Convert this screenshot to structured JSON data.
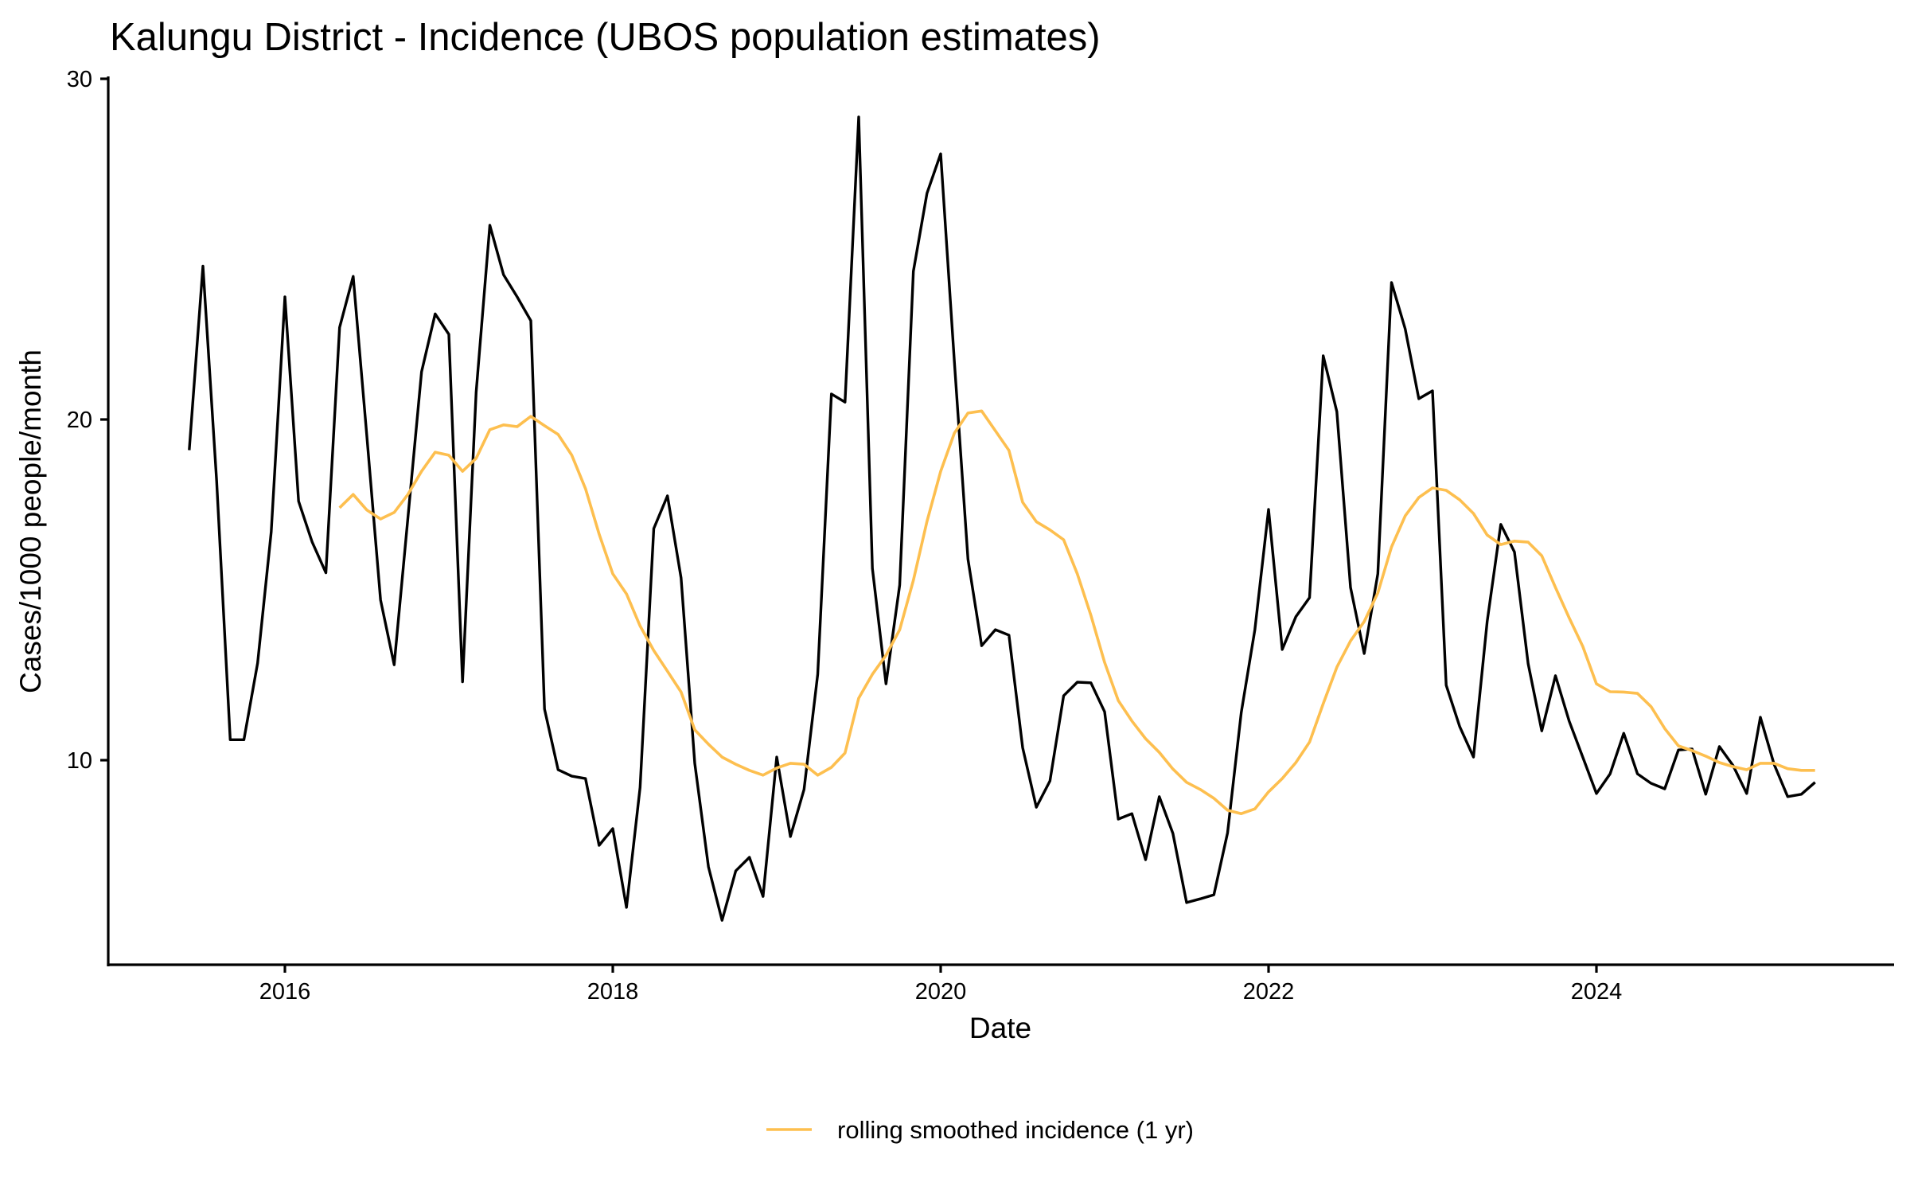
{
  "chart_data": {
    "type": "line",
    "title": "Kalungu District - Incidence (UBOS population estimates)",
    "xlabel": "Date",
    "ylabel": "Cases/1000 people/month",
    "x_start": "2015-06",
    "x_frequency": "monthly",
    "xlim": [
      2014.92,
      2025.82
    ],
    "ylim": [
      4.0,
      30.0
    ],
    "x_ticks": [
      2016,
      2018,
      2020,
      2022,
      2024
    ],
    "x_tick_labels": [
      "2016",
      "2018",
      "2020",
      "2022",
      "2024"
    ],
    "y_ticks": [
      10,
      20,
      30
    ],
    "y_tick_labels": [
      "10",
      "20",
      "30"
    ],
    "grid": false,
    "legend": {
      "position": "bottom",
      "entries": [
        "rolling smoothed incidence (1 yr)"
      ]
    },
    "series": [
      {
        "name": "incidence",
        "color": "#000000",
        "in_legend": false,
        "start_index": 0,
        "values": [
          19.1,
          24.5,
          18.2,
          10.6,
          10.6,
          12.85,
          16.7,
          23.6,
          17.6,
          16.4,
          15.5,
          22.7,
          24.2,
          19.5,
          14.7,
          12.8,
          17.1,
          21.4,
          23.1,
          22.5,
          12.3,
          20.8,
          25.7,
          24.25,
          23.6,
          22.9,
          11.5,
          9.72,
          9.53,
          9.46,
          7.5,
          7.99,
          5.68,
          9.2,
          16.8,
          17.76,
          15.35,
          9.91,
          6.87,
          5.3,
          6.75,
          7.15,
          6.0,
          10.09,
          7.76,
          9.14,
          12.52,
          20.75,
          20.51,
          28.88,
          15.63,
          12.24,
          15.14,
          24.35,
          26.64,
          27.8,
          21.7,
          15.9,
          13.36,
          13.83,
          13.67,
          10.37,
          8.62,
          9.39,
          11.89,
          12.29,
          12.27,
          11.42,
          8.27,
          8.43,
          7.08,
          8.93,
          7.85,
          5.82,
          5.93,
          6.05,
          7.87,
          11.4,
          13.83,
          17.36,
          13.25,
          14.21,
          14.77,
          21.87,
          20.23,
          15.07,
          13.13,
          15.47,
          24.02,
          22.66,
          20.61,
          20.84,
          12.2,
          10.98,
          10.09,
          14.07,
          16.92,
          16.11,
          12.83,
          10.86,
          12.48,
          11.15,
          10.09,
          9.02,
          9.6,
          10.79,
          9.6,
          9.32,
          9.16,
          10.3,
          10.33,
          9.0,
          10.4,
          9.84,
          9.02,
          11.26,
          9.88,
          8.93,
          9.0,
          9.35
        ]
      },
      {
        "name": "rolling smoothed incidence (1 yr)",
        "color": "#FDBF4F",
        "in_legend": true,
        "start_index": 11,
        "values": [
          17.41,
          17.8,
          17.34,
          17.08,
          17.27,
          17.8,
          18.48,
          19.04,
          18.95,
          18.48,
          18.86,
          19.7,
          19.84,
          19.79,
          20.09,
          19.82,
          19.56,
          18.95,
          17.97,
          16.64,
          15.47,
          14.88,
          13.94,
          13.22,
          12.61,
          12.0,
          10.89,
          10.47,
          10.09,
          9.88,
          9.7,
          9.56,
          9.77,
          9.91,
          9.88,
          9.56,
          9.79,
          10.21,
          11.82,
          12.52,
          13.08,
          13.83,
          15.28,
          17.01,
          18.48,
          19.6,
          20.19,
          20.25,
          19.67,
          19.09,
          17.57,
          17.0,
          16.76,
          16.47,
          15.47,
          14.25,
          12.87,
          11.75,
          11.15,
          10.63,
          10.23,
          9.74,
          9.35,
          9.14,
          8.88,
          8.53,
          8.43,
          8.57,
          9.07,
          9.46,
          9.93,
          10.53,
          11.66,
          12.73,
          13.5,
          14.07,
          14.91,
          16.26,
          17.17,
          17.71,
          17.99,
          17.92,
          17.64,
          17.24,
          16.61,
          16.33,
          16.43,
          16.4,
          16.0,
          15.07,
          14.18,
          13.34,
          12.24,
          12.01,
          12.0,
          11.96,
          11.57,
          10.93,
          10.42,
          10.28,
          10.12,
          9.93,
          9.81,
          9.72,
          9.91,
          9.91,
          9.75,
          9.7,
          9.7
        ]
      }
    ]
  }
}
